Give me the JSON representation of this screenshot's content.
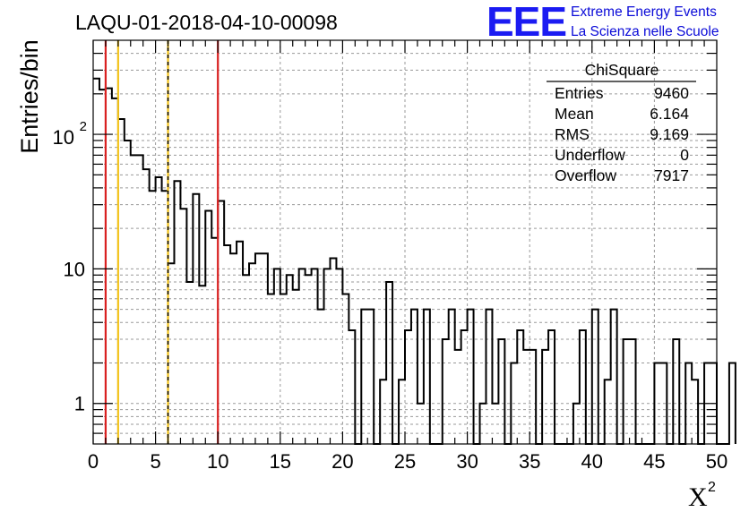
{
  "chart_data": {
    "type": "histogram",
    "title": "LAQU-01-2018-04-10-00098",
    "ylabel": "Entries/bin",
    "xlabel": "X",
    "xlabel_sup": "2",
    "xlim": [
      0,
      50
    ],
    "ylim": [
      0.5,
      500
    ],
    "yscale": "log",
    "grid": true,
    "bin_width": 0.5,
    "x_ticks": [
      "0",
      "5",
      "10",
      "15",
      "20",
      "25",
      "30",
      "35",
      "40",
      "45",
      "50"
    ],
    "y_ticks": [
      {
        "value": 1,
        "base": "1",
        "exp": ""
      },
      {
        "value": 10,
        "base": "10",
        "exp": ""
      },
      {
        "value": 100,
        "base": "10",
        "exp": "2"
      }
    ],
    "values": [
      260,
      215,
      220,
      185,
      130,
      90,
      70,
      70,
      55,
      38,
      48,
      38,
      11,
      45,
      28,
      8,
      36,
      7.5,
      27,
      17,
      32,
      15,
      13,
      16,
      9,
      11,
      13,
      13,
      6.5,
      10,
      6.5,
      9,
      7,
      10,
      9,
      10,
      5,
      10,
      12,
      10,
      6.5,
      3.5,
      0,
      5,
      5,
      0,
      1.5,
      8,
      0,
      1.5,
      3.5,
      5,
      1,
      5,
      0,
      0,
      3,
      5,
      2.5,
      3.5,
      5,
      0,
      1,
      5,
      1,
      3,
      0,
      2,
      3.5,
      2.5,
      2.5,
      0,
      2.5,
      3.5,
      0,
      0,
      0,
      1,
      3.5,
      0,
      5,
      0,
      1.5,
      5,
      0,
      3,
      3,
      0,
      0,
      0,
      2,
      2,
      0,
      3,
      0,
      2,
      1.5,
      0,
      2,
      2,
      0,
      0,
      2
    ],
    "vertical_lines": [
      {
        "x": 1,
        "color": "#d92121",
        "style": "solid"
      },
      {
        "x": 2,
        "color": "#f2c21a",
        "style": "solid"
      },
      {
        "x": 6,
        "color": "#f2c21a",
        "style": "solid"
      },
      {
        "x": 6,
        "color": "#000000",
        "style": "dashed"
      },
      {
        "x": 10,
        "color": "#d92121",
        "style": "solid"
      }
    ],
    "stats_box": {
      "name": "ChiSquare",
      "rows": [
        {
          "label": "Entries",
          "value": "9460"
        },
        {
          "label": "Mean",
          "value": "6.164"
        },
        {
          "label": "RMS",
          "value": "9.169"
        },
        {
          "label": "Underflow",
          "value": "0"
        },
        {
          "label": "Overflow",
          "value": "7917"
        }
      ]
    }
  },
  "logo": {
    "mark": "EEE",
    "line1": "Extreme Energy Events",
    "line2": "La Scienza nelle Scuole"
  }
}
